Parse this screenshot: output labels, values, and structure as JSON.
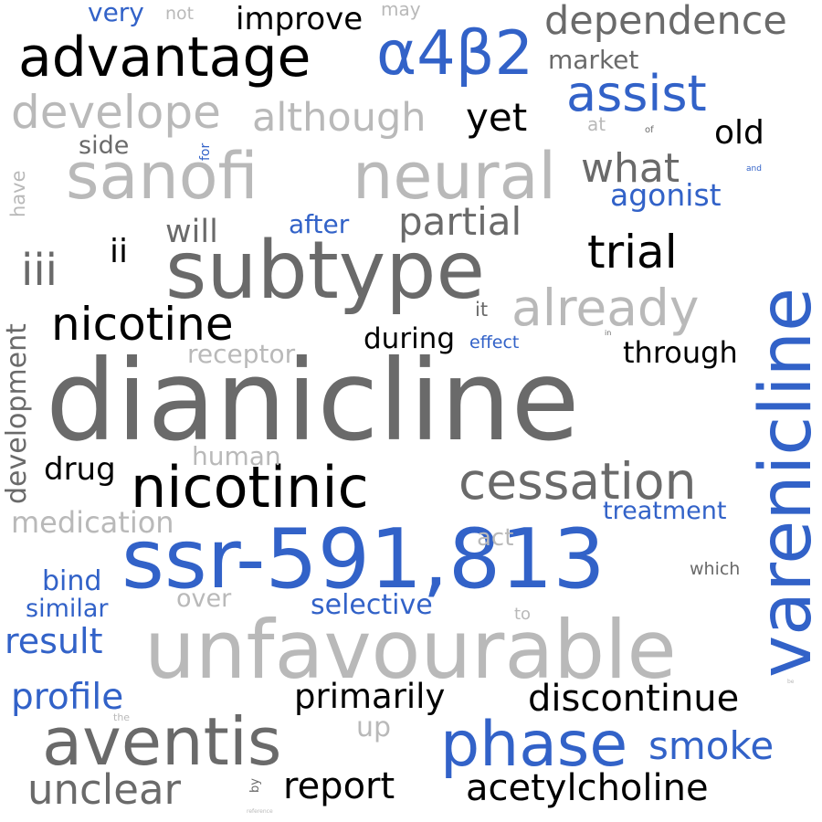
{
  "colors": {
    "background": "#ffffff",
    "black": "#000000",
    "dark_gray": "#6a6a6a",
    "light_gray": "#b9b9b9",
    "blue": "#3262c8"
  },
  "words": {
    "dianicline": "dianicline",
    "varenicline": "varenicline",
    "ssr_591_813": "ssr-591,813",
    "unfavourable": "unfavourable",
    "subtype": "subtype",
    "sanofi": "sanofi",
    "neural": "neural",
    "aventis": "aventis",
    "phase": "phase",
    "nicotinic": "nicotinic",
    "cessation": "cessation",
    "advantage": "advantage",
    "alpha4beta2": "α4β2",
    "dependence": "dependence",
    "assist": "assist",
    "develope": "develope",
    "although": "although",
    "nicotine": "nicotine",
    "trial": "trial",
    "already": "already",
    "iii": "iii",
    "ii": "ii",
    "partial": "partial",
    "what": "what",
    "acetylcholine": "acetylcholine",
    "discontinue": "discontinue",
    "unclear": "unclear",
    "report": "report",
    "yet": "yet",
    "improve": "improve",
    "primarily": "primarily",
    "profile": "profile",
    "smoke": "smoke",
    "result": "result",
    "agonist": "agonist",
    "market": "market",
    "medication": "medication",
    "development": "development",
    "old": "old",
    "through": "through",
    "drug": "drug",
    "will": "will",
    "receptor": "receptor",
    "after": "after",
    "selective": "selective",
    "treatment": "treatment",
    "similar": "similar",
    "bind": "bind",
    "human": "human",
    "over": "over",
    "during": "during",
    "effect": "effect",
    "very": "very",
    "side": "side",
    "up": "up",
    "act": "act",
    "which": "which",
    "it": "it",
    "not": "not",
    "may": "may",
    "have": "have",
    "at": "at",
    "to": "to",
    "for": "for",
    "by": "by",
    "of": "of",
    "and": "and",
    "in": "in",
    "the": "the",
    "be": "be",
    "reference": "reference"
  }
}
